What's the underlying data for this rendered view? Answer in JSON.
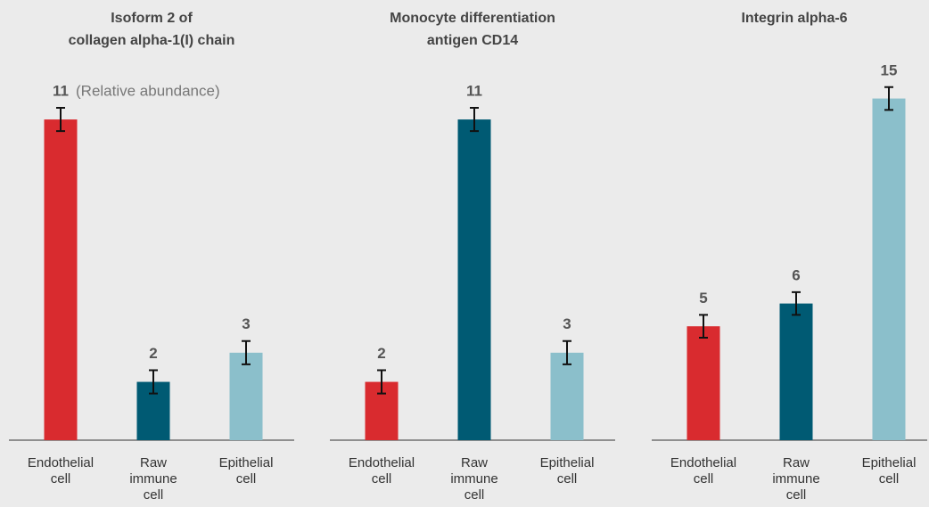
{
  "chart_data": [
    {
      "type": "bar",
      "title": "Isoform 2 of\ncollagen alpha-1(I) chain",
      "annotation": "(Relative abundance)",
      "categories": [
        "Endothelial cell",
        "Raw immune cell",
        "Epithelial cell"
      ],
      "values": [
        11,
        2,
        3
      ],
      "errors": [
        0.4,
        0.4,
        0.4
      ],
      "colors": [
        "#d92b2f",
        "#005a73",
        "#8bbfcb"
      ],
      "ylim": [
        0,
        12.5
      ]
    },
    {
      "type": "bar",
      "title": "Monocyte differentiation\nantigen CD14",
      "categories": [
        "Endothelial cell",
        "Raw immune cell",
        "Epithelial cell"
      ],
      "values": [
        2,
        11,
        3
      ],
      "errors": [
        0.4,
        0.4,
        0.4
      ],
      "colors": [
        "#d92b2f",
        "#005a73",
        "#8bbfcb"
      ],
      "ylim": [
        0,
        12.5
      ]
    },
    {
      "type": "bar",
      "title": "Integrin alpha-6",
      "categories": [
        "Endothelial cell",
        "Raw immune cell",
        "Epithelial cell"
      ],
      "values": [
        5,
        6,
        15
      ],
      "errors": [
        0.5,
        0.5,
        0.5
      ],
      "colors": [
        "#d92b2f",
        "#005a73",
        "#8bbfcb"
      ],
      "ylim": [
        0,
        16
      ]
    }
  ]
}
